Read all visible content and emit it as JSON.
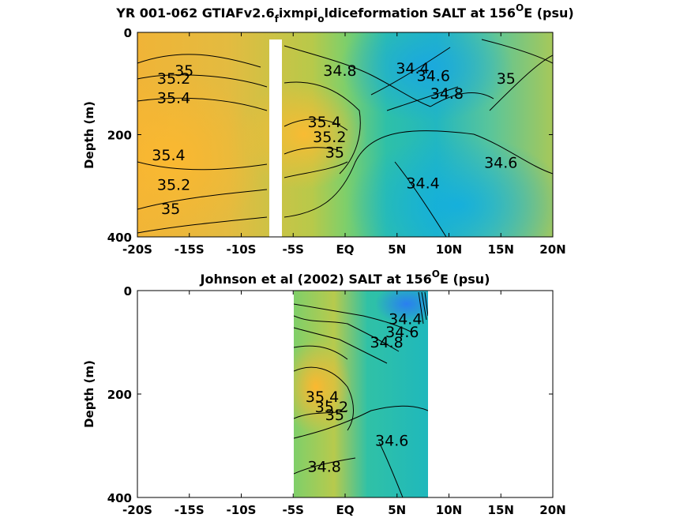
{
  "chart_data": [
    {
      "type": "heatmap",
      "title": "YR 001-062 GTIAFv2.6_fixmpi_oldiceformation SALT at 156°E (psu)",
      "title_parts": {
        "pre": "YR 001-062 GTIAFv2.6",
        "sub1": "f",
        "mid": "ixmpi",
        "sub2": "o",
        "post": "ldiceformation SALT at 156",
        "sup": "O",
        "tail": "E (psu)"
      },
      "ylabel": "Depth (m)",
      "x_tick_labels": [
        "-20S",
        "-15S",
        "-10S",
        "-5S",
        "EQ",
        "5N",
        "10N",
        "15N",
        "20N"
      ],
      "x_tick_values": [
        -20,
        -15,
        -10,
        -5,
        0,
        5,
        10,
        15,
        20
      ],
      "y_tick_labels": [
        "0",
        "200",
        "400"
      ],
      "y_tick_values": [
        0,
        200,
        400
      ],
      "xlim": [
        -20,
        20
      ],
      "ylim": [
        400,
        0
      ],
      "colormap": "parula",
      "contour_labels": [
        {
          "text": "35",
          "lat": -15.5,
          "depth": 85
        },
        {
          "text": "35.2",
          "lat": -16.5,
          "depth": 100
        },
        {
          "text": "35.4",
          "lat": -16.5,
          "depth": 138
        },
        {
          "text": "35.4",
          "lat": -17,
          "depth": 250
        },
        {
          "text": "35.2",
          "lat": -16.5,
          "depth": 308
        },
        {
          "text": "35",
          "lat": -16.8,
          "depth": 355
        },
        {
          "text": "34.8",
          "lat": -0.5,
          "depth": 85
        },
        {
          "text": "35.4",
          "lat": -2,
          "depth": 185
        },
        {
          "text": "35.2",
          "lat": -1.5,
          "depth": 215
        },
        {
          "text": "35",
          "lat": -1,
          "depth": 245
        },
        {
          "text": "34.4",
          "lat": 6.5,
          "depth": 80
        },
        {
          "text": "34.6",
          "lat": 8.5,
          "depth": 95
        },
        {
          "text": "34.8",
          "lat": 9.8,
          "depth": 130
        },
        {
          "text": "35",
          "lat": 15.5,
          "depth": 100
        },
        {
          "text": "34.6",
          "lat": 15,
          "depth": 265
        },
        {
          "text": "34.4",
          "lat": 7.5,
          "depth": 305
        }
      ],
      "missing_band_lat": [
        -7.5,
        -6.5
      ]
    },
    {
      "type": "heatmap",
      "title": "Johnson et al (2002) SALT at 156°E (psu)",
      "title_parts": {
        "pre": "Johnson et al (2002) SALT at 156",
        "sup": "O",
        "tail": "E (psu)"
      },
      "ylabel": "Depth (m)",
      "x_tick_labels": [
        "-20S",
        "-15S",
        "-10S",
        "-5S",
        "EQ",
        "5N",
        "10N",
        "15N",
        "20N"
      ],
      "x_tick_values": [
        -20,
        -15,
        -10,
        -5,
        0,
        5,
        10,
        15,
        20
      ],
      "y_tick_labels": [
        "0",
        "200",
        "400"
      ],
      "y_tick_values": [
        0,
        200,
        400
      ],
      "xlim": [
        -20,
        20
      ],
      "ylim": [
        400,
        0
      ],
      "data_lat_range": [
        -5,
        8
      ],
      "colormap": "parula",
      "contour_labels": [
        {
          "text": "34.4",
          "lat": 5.8,
          "depth": 65
        },
        {
          "text": "34.6",
          "lat": 5.5,
          "depth": 90
        },
        {
          "text": "34.8",
          "lat": 4,
          "depth": 110
        },
        {
          "text": "35.4",
          "lat": -2.2,
          "depth": 215
        },
        {
          "text": "35.2",
          "lat": -1.3,
          "depth": 235
        },
        {
          "text": "35",
          "lat": -1,
          "depth": 250
        },
        {
          "text": "34.6",
          "lat": 4.5,
          "depth": 300
        },
        {
          "text": "34.8",
          "lat": -2,
          "depth": 350
        }
      ]
    }
  ]
}
